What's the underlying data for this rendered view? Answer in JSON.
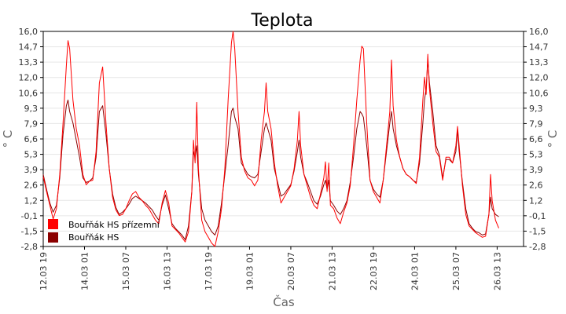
{
  "colors": {
    "primary": "#ff0000",
    "secondary": "#8b0000",
    "grid": "#e6e6e6"
  },
  "chart_data": {
    "type": "line",
    "title": "Teplota",
    "xlabel": "Čas",
    "ylabel": "° C",
    "ylim": [
      -2.8,
      16.0
    ],
    "y_ticks": [
      "16,0",
      "14,7",
      "13,3",
      "12,0",
      "10,6",
      "9,3",
      "7,9",
      "6,6",
      "5,3",
      "3,9",
      "2,6",
      "1,2",
      "-0,1",
      "-1,5",
      "-2,8"
    ],
    "xlim": [
      0,
      14.55
    ],
    "x_ticks": [
      {
        "label": "12.03 19",
        "x": 0
      },
      {
        "label": "14.03 01",
        "x": 1.25
      },
      {
        "label": "15.03 07",
        "x": 2.5
      },
      {
        "label": "16.03 13",
        "x": 3.75
      },
      {
        "label": "17.03 19",
        "x": 5.0
      },
      {
        "label": "19.03 01",
        "x": 6.25
      },
      {
        "label": "20.03 07",
        "x": 7.5
      },
      {
        "label": "21.03 13",
        "x": 8.75
      },
      {
        "label": "22.03 19",
        "x": 10.0
      },
      {
        "label": "24.03 01",
        "x": 11.25
      },
      {
        "label": "25.03 07",
        "x": 12.5
      },
      {
        "label": "26.03 13",
        "x": 13.75
      }
    ],
    "grid": true,
    "legend_position": "bottom-left",
    "series": [
      {
        "name": "Bouřňák HS přízemní",
        "color": "#ff0000",
        "points": [
          [
            0,
            3.3
          ],
          [
            0.1,
            2.0
          ],
          [
            0.2,
            0.8
          ],
          [
            0.3,
            -0.4
          ],
          [
            0.4,
            0.5
          ],
          [
            0.5,
            3.5
          ],
          [
            0.6,
            8.0
          ],
          [
            0.7,
            13.0
          ],
          [
            0.75,
            15.2
          ],
          [
            0.8,
            14.5
          ],
          [
            0.9,
            10.0
          ],
          [
            1.0,
            7.5
          ],
          [
            1.1,
            6.0
          ],
          [
            1.2,
            3.5
          ],
          [
            1.3,
            2.6
          ],
          [
            1.4,
            2.9
          ],
          [
            1.5,
            3.0
          ],
          [
            1.6,
            5.5
          ],
          [
            1.7,
            11.5
          ],
          [
            1.8,
            12.9
          ],
          [
            1.9,
            8.0
          ],
          [
            2.0,
            4.0
          ],
          [
            2.1,
            1.5
          ],
          [
            2.2,
            0.4
          ],
          [
            2.3,
            -0.1
          ],
          [
            2.4,
            0.0
          ],
          [
            2.5,
            0.5
          ],
          [
            2.6,
            1.2
          ],
          [
            2.7,
            1.8
          ],
          [
            2.8,
            2.0
          ],
          [
            2.9,
            1.5
          ],
          [
            3.0,
            1.2
          ],
          [
            3.1,
            0.8
          ],
          [
            3.2,
            0.5
          ],
          [
            3.3,
            0.0
          ],
          [
            3.4,
            -0.5
          ],
          [
            3.5,
            -0.8
          ],
          [
            3.6,
            1.0
          ],
          [
            3.7,
            2.1
          ],
          [
            3.8,
            1.0
          ],
          [
            3.9,
            -1.0
          ],
          [
            4.0,
            -1.3
          ],
          [
            4.1,
            -1.6
          ],
          [
            4.2,
            -2.0
          ],
          [
            4.3,
            -2.4
          ],
          [
            4.4,
            -1.5
          ],
          [
            4.5,
            2.0
          ],
          [
            4.55,
            6.5
          ],
          [
            4.6,
            4.5
          ],
          [
            4.65,
            9.8
          ],
          [
            4.7,
            4.0
          ],
          [
            4.8,
            -0.5
          ],
          [
            4.9,
            -1.5
          ],
          [
            5.0,
            -2.0
          ],
          [
            5.1,
            -2.5
          ],
          [
            5.2,
            -2.8
          ],
          [
            5.3,
            -1.5
          ],
          [
            5.4,
            0.5
          ],
          [
            5.5,
            4.0
          ],
          [
            5.6,
            10.0
          ],
          [
            5.7,
            15.0
          ],
          [
            5.75,
            16.0
          ],
          [
            5.8,
            14.5
          ],
          [
            5.9,
            9.0
          ],
          [
            6.0,
            5.0
          ],
          [
            6.1,
            3.8
          ],
          [
            6.2,
            3.2
          ],
          [
            6.3,
            3.0
          ],
          [
            6.4,
            2.5
          ],
          [
            6.5,
            3.0
          ],
          [
            6.6,
            6.5
          ],
          [
            6.7,
            9.0
          ],
          [
            6.75,
            11.5
          ],
          [
            6.8,
            9.0
          ],
          [
            6.9,
            7.5
          ],
          [
            7.0,
            4.5
          ],
          [
            7.1,
            2.5
          ],
          [
            7.2,
            1.0
          ],
          [
            7.3,
            1.5
          ],
          [
            7.4,
            2.0
          ],
          [
            7.5,
            2.5
          ],
          [
            7.6,
            4.0
          ],
          [
            7.7,
            6.5
          ],
          [
            7.75,
            9.0
          ],
          [
            7.8,
            6.0
          ],
          [
            7.9,
            3.5
          ],
          [
            8.0,
            2.5
          ],
          [
            8.1,
            1.5
          ],
          [
            8.2,
            0.8
          ],
          [
            8.3,
            0.5
          ],
          [
            8.4,
            1.8
          ],
          [
            8.5,
            3.2
          ],
          [
            8.55,
            4.6
          ],
          [
            8.6,
            2.0
          ],
          [
            8.65,
            4.5
          ],
          [
            8.7,
            0.8
          ],
          [
            8.8,
            0.5
          ],
          [
            8.9,
            -0.3
          ],
          [
            9.0,
            -0.8
          ],
          [
            9.1,
            0.2
          ],
          [
            9.2,
            1.0
          ],
          [
            9.3,
            2.5
          ],
          [
            9.4,
            6.0
          ],
          [
            9.5,
            10.0
          ],
          [
            9.6,
            13.5
          ],
          [
            9.65,
            14.7
          ],
          [
            9.7,
            14.5
          ],
          [
            9.8,
            8.0
          ],
          [
            9.9,
            3.0
          ],
          [
            10.0,
            2.0
          ],
          [
            10.1,
            1.5
          ],
          [
            10.2,
            1.0
          ],
          [
            10.3,
            3.0
          ],
          [
            10.4,
            6.0
          ],
          [
            10.5,
            9.0
          ],
          [
            10.55,
            13.5
          ],
          [
            10.6,
            9.5
          ],
          [
            10.7,
            6.5
          ],
          [
            10.8,
            5.0
          ],
          [
            10.9,
            4.0
          ],
          [
            11.0,
            3.5
          ],
          [
            11.1,
            3.3
          ],
          [
            11.2,
            3.0
          ],
          [
            11.3,
            2.7
          ],
          [
            11.4,
            5.0
          ],
          [
            11.5,
            10.0
          ],
          [
            11.55,
            12.0
          ],
          [
            11.6,
            10.5
          ],
          [
            11.65,
            14.0
          ],
          [
            11.7,
            11.0
          ],
          [
            11.8,
            8.0
          ],
          [
            11.9,
            5.5
          ],
          [
            12.0,
            5.0
          ],
          [
            12.1,
            3.0
          ],
          [
            12.2,
            5.0
          ],
          [
            12.3,
            5.0
          ],
          [
            12.4,
            4.5
          ],
          [
            12.5,
            6.0
          ],
          [
            12.55,
            7.7
          ],
          [
            12.6,
            6.0
          ],
          [
            12.7,
            2.5
          ],
          [
            12.8,
            0.0
          ],
          [
            12.9,
            -1.0
          ],
          [
            13.0,
            -1.3
          ],
          [
            13.1,
            -1.6
          ],
          [
            13.2,
            -1.8
          ],
          [
            13.3,
            -2.0
          ],
          [
            13.4,
            -1.9
          ],
          [
            13.5,
            0.0
          ],
          [
            13.55,
            3.5
          ],
          [
            13.6,
            1.2
          ],
          [
            13.7,
            -0.5
          ],
          [
            13.8,
            -1.2
          ]
        ]
      },
      {
        "name": "Bouřňák HS",
        "color": "#8b0000",
        "points": [
          [
            0,
            3.5
          ],
          [
            0.1,
            2.2
          ],
          [
            0.2,
            1.0
          ],
          [
            0.3,
            0.2
          ],
          [
            0.4,
            0.8
          ],
          [
            0.5,
            3.2
          ],
          [
            0.6,
            7.0
          ],
          [
            0.7,
            9.5
          ],
          [
            0.75,
            10.0
          ],
          [
            0.8,
            9.0
          ],
          [
            0.9,
            8.0
          ],
          [
            1.0,
            6.5
          ],
          [
            1.1,
            5.0
          ],
          [
            1.2,
            3.2
          ],
          [
            1.3,
            2.8
          ],
          [
            1.4,
            2.9
          ],
          [
            1.5,
            3.2
          ],
          [
            1.6,
            5.0
          ],
          [
            1.7,
            9.0
          ],
          [
            1.8,
            9.5
          ],
          [
            1.9,
            7.0
          ],
          [
            2.0,
            4.0
          ],
          [
            2.1,
            1.8
          ],
          [
            2.2,
            0.6
          ],
          [
            2.3,
            0.0
          ],
          [
            2.4,
            0.2
          ],
          [
            2.5,
            0.5
          ],
          [
            2.6,
            0.9
          ],
          [
            2.7,
            1.4
          ],
          [
            2.8,
            1.6
          ],
          [
            2.9,
            1.4
          ],
          [
            3.0,
            1.2
          ],
          [
            3.1,
            1.0
          ],
          [
            3.2,
            0.7
          ],
          [
            3.3,
            0.4
          ],
          [
            3.4,
            -0.1
          ],
          [
            3.5,
            -0.5
          ],
          [
            3.6,
            0.8
          ],
          [
            3.7,
            1.7
          ],
          [
            3.8,
            0.5
          ],
          [
            3.9,
            -0.8
          ],
          [
            4.0,
            -1.2
          ],
          [
            4.1,
            -1.5
          ],
          [
            4.2,
            -1.8
          ],
          [
            4.3,
            -2.2
          ],
          [
            4.4,
            -1.0
          ],
          [
            4.5,
            2.0
          ],
          [
            4.55,
            5.5
          ],
          [
            4.6,
            5.0
          ],
          [
            4.65,
            6.0
          ],
          [
            4.7,
            3.5
          ],
          [
            4.8,
            0.5
          ],
          [
            4.9,
            -0.5
          ],
          [
            5.0,
            -1.0
          ],
          [
            5.1,
            -1.5
          ],
          [
            5.2,
            -1.8
          ],
          [
            5.3,
            -1.0
          ],
          [
            5.4,
            1.0
          ],
          [
            5.5,
            3.5
          ],
          [
            5.6,
            6.0
          ],
          [
            5.7,
            9.0
          ],
          [
            5.75,
            9.3
          ],
          [
            5.8,
            8.5
          ],
          [
            5.9,
            7.5
          ],
          [
            6.0,
            4.5
          ],
          [
            6.1,
            4.0
          ],
          [
            6.2,
            3.5
          ],
          [
            6.3,
            3.3
          ],
          [
            6.4,
            3.2
          ],
          [
            6.5,
            3.5
          ],
          [
            6.6,
            5.5
          ],
          [
            6.7,
            7.5
          ],
          [
            6.75,
            8.0
          ],
          [
            6.8,
            7.5
          ],
          [
            6.9,
            6.5
          ],
          [
            7.0,
            4.0
          ],
          [
            7.1,
            2.8
          ],
          [
            7.2,
            1.6
          ],
          [
            7.3,
            1.8
          ],
          [
            7.4,
            2.2
          ],
          [
            7.5,
            2.6
          ],
          [
            7.6,
            3.8
          ],
          [
            7.7,
            5.5
          ],
          [
            7.75,
            6.5
          ],
          [
            7.8,
            5.0
          ],
          [
            7.9,
            3.5
          ],
          [
            8.0,
            2.8
          ],
          [
            8.1,
            2.0
          ],
          [
            8.2,
            1.2
          ],
          [
            8.3,
            0.9
          ],
          [
            8.4,
            1.6
          ],
          [
            8.5,
            2.6
          ],
          [
            8.55,
            3.0
          ],
          [
            8.6,
            2.2
          ],
          [
            8.65,
            3.0
          ],
          [
            8.7,
            1.2
          ],
          [
            8.8,
            0.8
          ],
          [
            8.9,
            0.3
          ],
          [
            9.0,
            0.0
          ],
          [
            9.1,
            0.5
          ],
          [
            9.2,
            1.2
          ],
          [
            9.3,
            2.8
          ],
          [
            9.4,
            5.0
          ],
          [
            9.5,
            7.5
          ],
          [
            9.6,
            9.0
          ],
          [
            9.65,
            8.8
          ],
          [
            9.7,
            8.5
          ],
          [
            9.8,
            6.0
          ],
          [
            9.9,
            3.0
          ],
          [
            10.0,
            2.2
          ],
          [
            10.1,
            1.8
          ],
          [
            10.2,
            1.5
          ],
          [
            10.3,
            3.0
          ],
          [
            10.4,
            5.5
          ],
          [
            10.5,
            8.0
          ],
          [
            10.55,
            9.0
          ],
          [
            10.6,
            7.5
          ],
          [
            10.7,
            6.0
          ],
          [
            10.8,
            5.0
          ],
          [
            10.9,
            4.0
          ],
          [
            11.0,
            3.5
          ],
          [
            11.1,
            3.3
          ],
          [
            11.2,
            3.0
          ],
          [
            11.3,
            2.8
          ],
          [
            11.4,
            4.5
          ],
          [
            11.5,
            8.0
          ],
          [
            11.55,
            10.0
          ],
          [
            11.6,
            11.0
          ],
          [
            11.65,
            13.5
          ],
          [
            11.7,
            11.5
          ],
          [
            11.8,
            9.0
          ],
          [
            11.9,
            6.0
          ],
          [
            12.0,
            5.2
          ],
          [
            12.1,
            3.2
          ],
          [
            12.2,
            4.8
          ],
          [
            12.3,
            4.8
          ],
          [
            12.4,
            4.5
          ],
          [
            12.5,
            5.5
          ],
          [
            12.55,
            7.4
          ],
          [
            12.6,
            5.5
          ],
          [
            12.7,
            2.8
          ],
          [
            12.8,
            0.5
          ],
          [
            12.9,
            -0.8
          ],
          [
            13.0,
            -1.2
          ],
          [
            13.1,
            -1.5
          ],
          [
            13.2,
            -1.6
          ],
          [
            13.3,
            -1.8
          ],
          [
            13.4,
            -1.7
          ],
          [
            13.5,
            0.0
          ],
          [
            13.55,
            1.5
          ],
          [
            13.6,
            0.5
          ],
          [
            13.7,
            0.0
          ],
          [
            13.8,
            -0.2
          ]
        ]
      }
    ]
  }
}
